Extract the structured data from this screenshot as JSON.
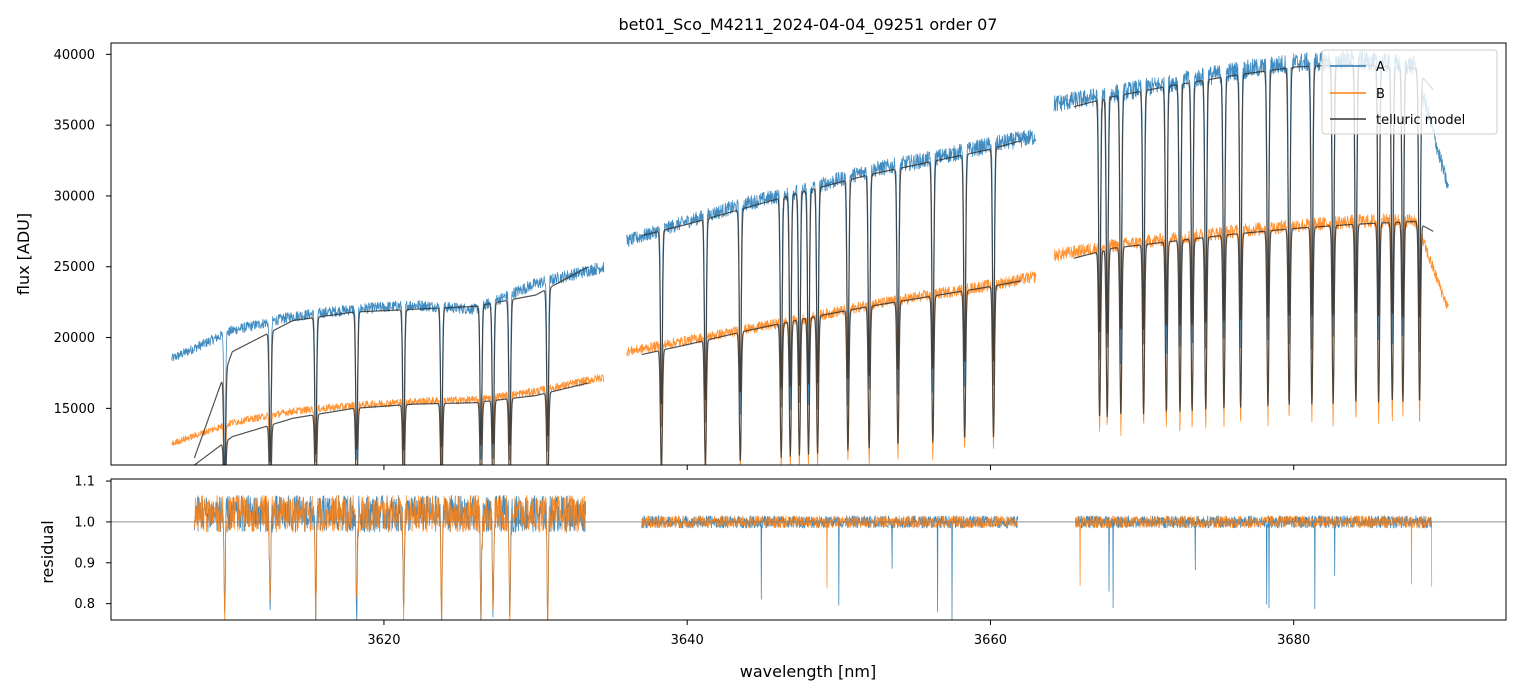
{
  "title": "bet01_Sco_M4211_2024-04-04_09251  order 07",
  "colors": {
    "A": "#1f77b4",
    "B": "#ff7f0e",
    "model": "#333333",
    "ref_line": "#808080"
  },
  "chart_data": [
    {
      "panel": "flux",
      "type": "line",
      "title": "bet01_Sco_M4211_2024-04-04_09251  order 07",
      "xlabel": "",
      "ylabel": "flux [ADU]",
      "xlim": [
        3602,
        3694
      ],
      "ylim": [
        11000,
        40800
      ],
      "yticks": [
        15000,
        20000,
        25000,
        30000,
        35000,
        40000
      ],
      "ytick_labels": [
        "15000",
        "20000",
        "25000",
        "30000",
        "35000",
        "40000"
      ],
      "legend": {
        "placement": "top-right",
        "entries": [
          "A",
          "B",
          "telluric model"
        ]
      },
      "series": [
        {
          "name": "A",
          "segments": [
            {
              "x": [
                3606.0,
                3610,
                3614,
                3618,
                3622,
                3626,
                3630,
                3634.5
              ],
              "y": [
                18500,
                20500,
                21500,
                22000,
                22300,
                22000,
                23800,
                25000
              ]
            },
            {
              "x": [
                3636.0,
                3640,
                3644,
                3648,
                3652,
                3656,
                3660,
                3663.0
              ],
              "y": [
                26800,
                28200,
                29500,
                30500,
                31800,
                32600,
                33600,
                34200
              ]
            },
            {
              "x": [
                3664.2,
                3668,
                3672,
                3676,
                3680,
                3684,
                3688,
                3690.2
              ],
              "y": [
                36500,
                37200,
                38000,
                38800,
                39400,
                39600,
                39200,
                30500
              ]
            }
          ]
        },
        {
          "name": "B",
          "segments": [
            {
              "x": [
                3606.0,
                3610,
                3614,
                3618,
                3622,
                3626,
                3630,
                3634.5
              ],
              "y": [
                12500,
                14000,
                14800,
                15200,
                15500,
                15600,
                16200,
                17200
              ]
            },
            {
              "x": [
                3636.0,
                3640,
                3644,
                3648,
                3652,
                3656,
                3660,
                3663.0
              ],
              "y": [
                19000,
                19800,
                20600,
                21400,
                22300,
                23000,
                23700,
                24300
              ]
            },
            {
              "x": [
                3664.2,
                3668,
                3672,
                3676,
                3680,
                3684,
                3688,
                3690.2
              ],
              "y": [
                25800,
                26500,
                27000,
                27500,
                27900,
                28200,
                28300,
                22000
              ]
            }
          ]
        },
        {
          "name": "telluric model",
          "segments": [
            {
              "x": [
                3607.5,
                3610,
                3614,
                3618,
                3622,
                3626,
                3630,
                3633.5
              ],
              "y": [
                11500,
                19000,
                21200,
                21800,
                22000,
                22200,
                23000,
                25000
              ]
            },
            {
              "x": [
                3607.5,
                3610,
                3614,
                3618,
                3622,
                3626,
                3630,
                3633.5
              ],
              "y": [
                11000,
                13000,
                14300,
                15000,
                15300,
                15400,
                15900,
                16800
              ]
            },
            {
              "x": [
                3637.0,
                3640,
                3644,
                3648,
                3652,
                3656,
                3660,
                3662.0
              ],
              "y": [
                27200,
                28000,
                29200,
                30400,
                31500,
                32400,
                33300,
                33900
              ]
            },
            {
              "x": [
                3637.0,
                3640,
                3644,
                3648,
                3652,
                3656,
                3660,
                3662.0
              ],
              "y": [
                18800,
                19500,
                20500,
                21400,
                22200,
                22900,
                23600,
                24000
              ]
            },
            {
              "x": [
                3665.5,
                3668,
                3672,
                3676,
                3680,
                3684,
                3688,
                3689.2
              ],
              "y": [
                36300,
                37000,
                37800,
                38500,
                39100,
                39300,
                39000,
                37500
              ]
            },
            {
              "x": [
                3665.5,
                3668,
                3672,
                3676,
                3680,
                3684,
                3688,
                3689.2
              ],
              "y": [
                25600,
                26300,
                26800,
                27300,
                27700,
                28000,
                28200,
                27500
              ]
            }
          ]
        }
      ],
      "absorption_lines_nm": [
        3609.5,
        3612.5,
        3615.5,
        3618.2,
        3621.3,
        3623.8,
        3626.4,
        3627.2,
        3628.3,
        3630.8,
        3638.3,
        3641.2,
        3643.5,
        3646.2,
        3646.8,
        3647.4,
        3648.0,
        3648.6,
        3650.6,
        3652.0,
        3653.9,
        3656.2,
        3658.3,
        3660.2,
        3667.2,
        3667.7,
        3668.6,
        3670.1,
        3671.6,
        3672.5,
        3673.3,
        3674.2,
        3675.4,
        3676.5,
        3678.3,
        3679.7,
        3681.2,
        3682.6,
        3684.1,
        3685.6,
        3686.5,
        3687.2,
        3688.3
      ]
    },
    {
      "panel": "residual",
      "type": "line",
      "xlabel": "wavelength [nm]",
      "ylabel": "residual",
      "xlim": [
        3602,
        3694
      ],
      "ylim": [
        0.76,
        1.105
      ],
      "xticks": [
        3620,
        3640,
        3660,
        3680
      ],
      "xtick_labels": [
        "3620",
        "3640",
        "3660",
        "3680"
      ],
      "yticks": [
        0.8,
        0.9,
        1.0,
        1.1
      ],
      "ytick_labels": [
        "0.8",
        "0.9",
        "1.0",
        "1.1"
      ],
      "reference_line": 1.0,
      "series": [
        {
          "name": "A",
          "segments": [
            {
              "x": [
                3607.5,
                3633.3
              ],
              "y": [
                1.02,
                1.02
              ]
            },
            {
              "x": [
                3637.0,
                3661.8
              ],
              "y": [
                1.0,
                1.0
              ]
            },
            {
              "x": [
                3665.6,
                3689.1
              ],
              "y": [
                1.0,
                1.0
              ]
            }
          ]
        },
        {
          "name": "B",
          "segments": [
            {
              "x": [
                3607.5,
                3633.3
              ],
              "y": [
                1.02,
                1.02
              ]
            },
            {
              "x": [
                3637.0,
                3661.8
              ],
              "y": [
                1.0,
                1.0
              ]
            },
            {
              "x": [
                3665.6,
                3689.1
              ],
              "y": [
                1.0,
                1.0
              ]
            }
          ]
        }
      ]
    }
  ]
}
